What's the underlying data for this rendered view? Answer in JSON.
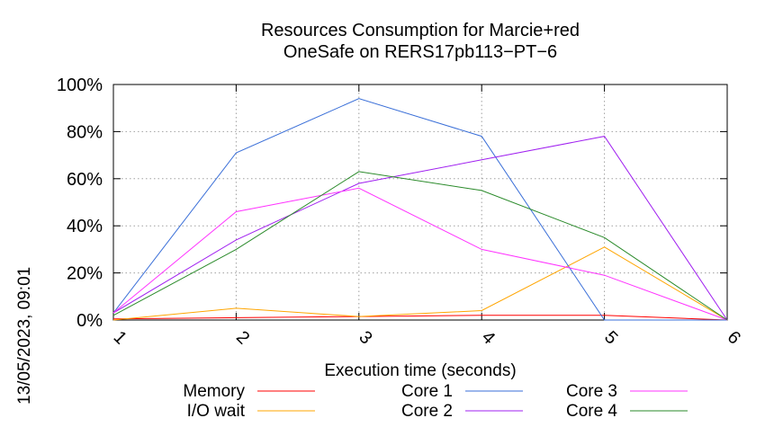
{
  "side_text": "13/05/2023, 09:01",
  "chart_data": {
    "type": "line",
    "title_lines": [
      "Resources Consumption for Marcie+red",
      "OneSafe on RERS17pb113−PT−6"
    ],
    "xlabel": "Execution time (seconds)",
    "ylabel": "",
    "x": [
      1,
      2,
      3,
      4,
      5,
      6
    ],
    "x_tick_labels": [
      "1",
      "2",
      "3",
      "4",
      "5",
      "6"
    ],
    "xlim": [
      1,
      6
    ],
    "ylim": [
      0,
      100
    ],
    "y_ticks": [
      0,
      20,
      40,
      60,
      80,
      100
    ],
    "y_tick_labels": [
      "0%",
      "20%",
      "40%",
      "60%",
      "80%",
      "100%"
    ],
    "grid": true,
    "legend_position": "bottom",
    "series": [
      {
        "name": "Memory",
        "color": "#ff0000",
        "values": [
          0.5,
          1,
          1.5,
          2,
          2,
          0
        ]
      },
      {
        "name": "I/O wait",
        "color": "#ffa500",
        "values": [
          0,
          5,
          1.5,
          4,
          31,
          0
        ]
      },
      {
        "name": "Core 1",
        "color": "#3a6fd8",
        "values": [
          3,
          71,
          94,
          78,
          0,
          0
        ]
      },
      {
        "name": "Core 2",
        "color": "#a020f0",
        "values": [
          3,
          34,
          58,
          68,
          78,
          0
        ]
      },
      {
        "name": "Core 3",
        "color": "#ff33ff",
        "values": [
          3,
          46,
          56,
          30,
          19,
          0
        ]
      },
      {
        "name": "Core 4",
        "color": "#2a8a2a",
        "values": [
          2,
          30,
          63,
          55,
          35,
          0
        ]
      }
    ]
  }
}
